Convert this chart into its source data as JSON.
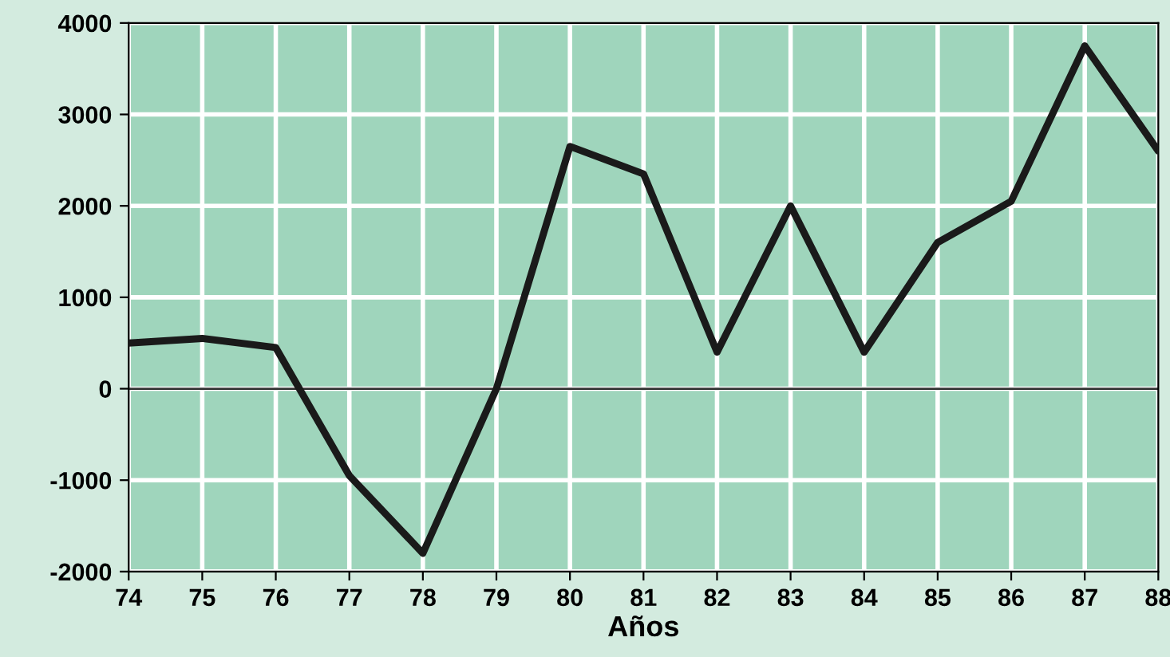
{
  "chart_data": {
    "type": "line",
    "xlabel": "Años",
    "x": [
      74,
      75,
      76,
      77,
      78,
      79,
      80,
      81,
      82,
      83,
      84,
      85,
      86,
      87,
      88
    ],
    "series": [
      {
        "color": "#1a1a1a",
        "values": [
          500,
          550,
          450,
          -950,
          -1800,
          0,
          2650,
          2350,
          400,
          2000,
          400,
          1600,
          2050,
          3750,
          2600
        ]
      }
    ],
    "xlim": [
      74,
      88
    ],
    "xticks": [
      74,
      75,
      76,
      77,
      78,
      79,
      80,
      81,
      82,
      83,
      84,
      85,
      86,
      87,
      88
    ],
    "ylim": [
      -2000,
      4000
    ],
    "yticks": [
      -2000,
      -1000,
      0,
      1000,
      2000,
      3000,
      4000
    ],
    "ref_lines": [
      {
        "axis": "y",
        "value": 0,
        "color": "#333333"
      }
    ],
    "grid": true,
    "legend": false,
    "marker": "none",
    "line_style": "solid"
  }
}
